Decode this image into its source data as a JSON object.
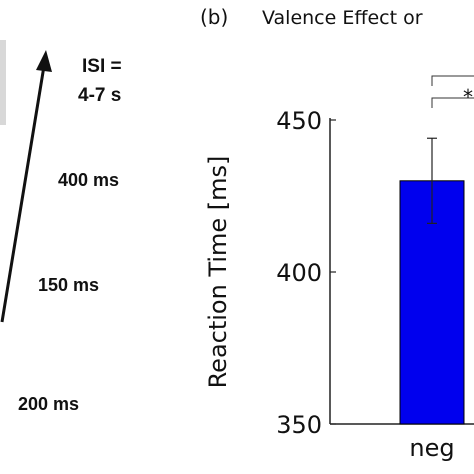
{
  "left_panel": {
    "isi_line1": "ISI =",
    "isi_line2": "4-7 s",
    "time_400": "400 ms",
    "time_150": "150 ms",
    "time_200": "200 ms"
  },
  "chart_data": {
    "type": "bar",
    "panel_label": "(b)",
    "title": "Valence Effect or",
    "ylabel": "Reaction Time [ms]",
    "ylim": [
      350,
      450
    ],
    "yticks": [
      350,
      400,
      450
    ],
    "categories": [
      "neg"
    ],
    "values": [
      430
    ],
    "error": [
      14
    ],
    "significance": [
      "*"
    ],
    "colors": {
      "bar": "#0000ee",
      "axis": "#222222"
    }
  }
}
